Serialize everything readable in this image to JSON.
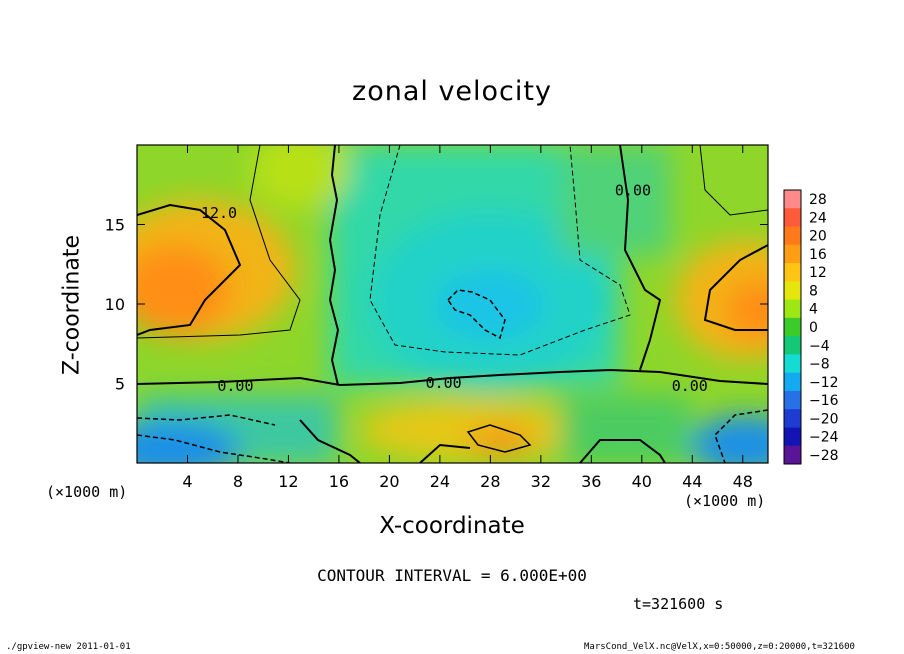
{
  "chart_data": {
    "type": "heatmap",
    "title": "zonal velocity",
    "xlabel": "X-coordinate",
    "ylabel": "Z-coordinate",
    "x_unit": "(×1000 m)",
    "xlim": [
      0,
      50
    ],
    "ylim": [
      0,
      20
    ],
    "x_ticks": [
      "4",
      "8",
      "12",
      "16",
      "20",
      "24",
      "28",
      "32",
      "36",
      "40",
      "44",
      "48"
    ],
    "x_tick_values": [
      4,
      8,
      12,
      16,
      20,
      24,
      28,
      32,
      36,
      40,
      44,
      48
    ],
    "y_ticks": [
      "5",
      "10",
      "15"
    ],
    "y_tick_values": [
      5,
      10,
      15
    ],
    "colorbar_labels": [
      "28",
      "24",
      "20",
      "16",
      "12",
      "8",
      "4",
      "0",
      "−4",
      "−8",
      "−12",
      "−16",
      "−20",
      "−24",
      "−28"
    ],
    "colorbar_colors": [
      "#ff8a8a",
      "#ff5a3a",
      "#ff7a1a",
      "#ff9e14",
      "#ffc414",
      "#e6e60f",
      "#9ee614",
      "#3ccc2a",
      "#14c878",
      "#14dcd2",
      "#14aaf0",
      "#2870e6",
      "#1e3cd2",
      "#1414b4",
      "#5a1496"
    ],
    "contour_interval": "CONTOUR INTERVAL = 6.000E+00",
    "contour_labels": [
      {
        "text": "12.0",
        "x": 6.5,
        "y": 15.8
      },
      {
        "text": "0.00",
        "x": 39.3,
        "y": 17.2
      },
      {
        "text": "0.00",
        "x": 7.8,
        "y": 4.9
      },
      {
        "text": "0.00",
        "x": 24.3,
        "y": 5.1
      },
      {
        "text": "0.00",
        "x": 43.8,
        "y": 4.9
      }
    ],
    "time": "t=321600 s"
  },
  "footer": {
    "left": "./gpview-new  2011-01-01",
    "right": "MarsCond_VelX.nc@VelX,x=0:50000,z=0:20000,t=321600"
  }
}
